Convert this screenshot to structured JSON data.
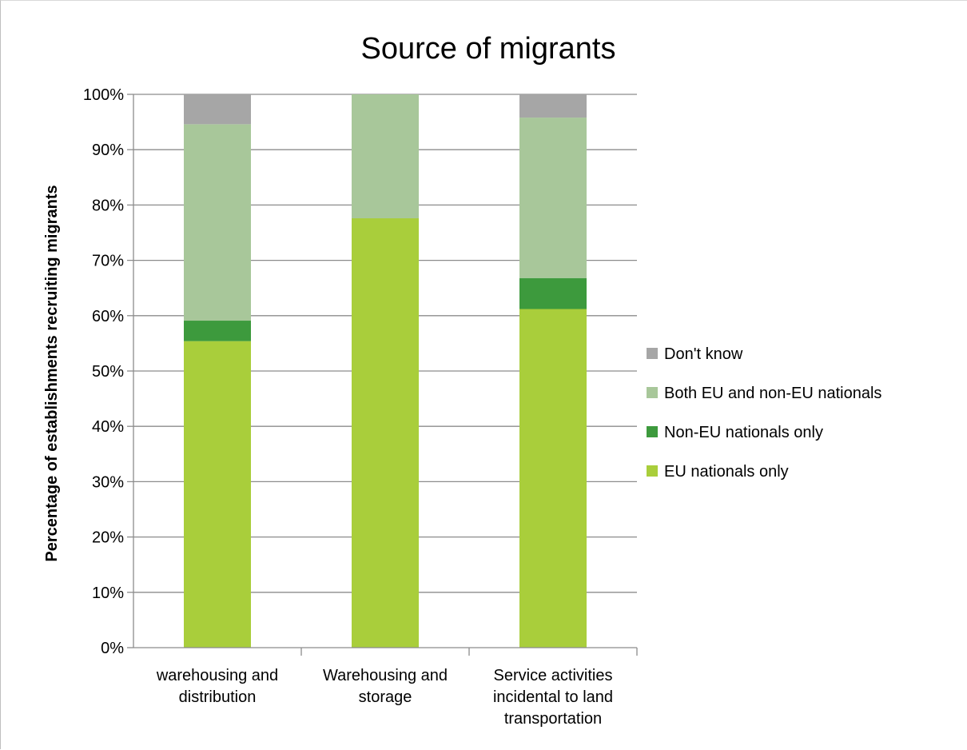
{
  "chart_data": {
    "type": "bar",
    "stacked": true,
    "title": "Source of migrants",
    "ylabel": "Percentage of establishments recruiting migrants",
    "xlabel": "",
    "ylim": [
      0,
      100
    ],
    "yticks": [
      "0%",
      "10%",
      "20%",
      "30%",
      "40%",
      "50%",
      "60%",
      "70%",
      "80%",
      "90%",
      "100%"
    ],
    "categories": [
      [
        "warehousing and",
        "distribution"
      ],
      [
        "Warehousing and",
        "storage"
      ],
      [
        "Service activities",
        "incidental to land",
        "transportation"
      ]
    ],
    "series": [
      {
        "name": "EU nationals only",
        "color": "#a9ce3b",
        "values": [
          55.4,
          77.6,
          61.2
        ]
      },
      {
        "name": "Non-EU nationals only",
        "color": "#3d9a3d",
        "values": [
          3.7,
          0.0,
          5.6
        ]
      },
      {
        "name": "Both EU and non-EU nationals",
        "color": "#a8c79a",
        "values": [
          35.5,
          22.4,
          29.0
        ]
      },
      {
        "name": "Don't know",
        "color": "#a6a6a6",
        "values": [
          5.4,
          0.0,
          4.2
        ]
      }
    ],
    "grid": true,
    "legend_position": "right"
  }
}
